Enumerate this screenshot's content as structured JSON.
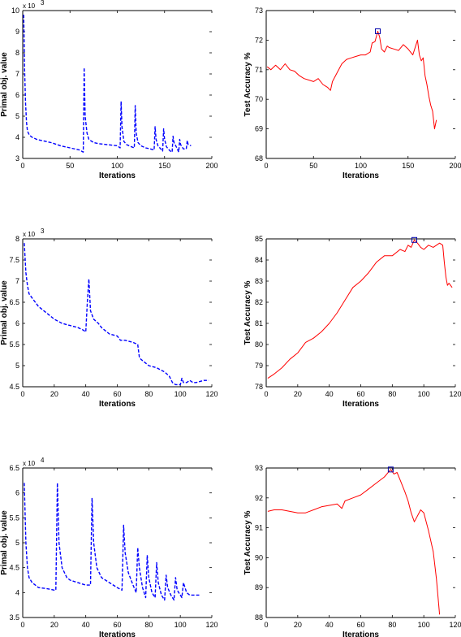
{
  "chart_data": [
    {
      "type": "line",
      "xlabel": "Iterations",
      "ylabel": "Primal obj. value",
      "y_multiplier": "x 10",
      "y_multiplier_exp": "3",
      "xlim": [
        0,
        200
      ],
      "ylim": [
        3,
        10
      ],
      "xticks": [
        0,
        50,
        100,
        150,
        200
      ],
      "yticks": [
        3,
        4,
        5,
        6,
        7,
        8,
        9,
        10
      ],
      "color": "#0000ff",
      "dashed": true,
      "series": [
        {
          "x": [
            1,
            2,
            3,
            4,
            5,
            7,
            10,
            15,
            20,
            30,
            40,
            50,
            60,
            64,
            65,
            66,
            68,
            70,
            75,
            80,
            90,
            100,
            103,
            104,
            105,
            107,
            110,
            115,
            118,
            119,
            120,
            122,
            125,
            130,
            135,
            139,
            140,
            141,
            143,
            146,
            148,
            149,
            150,
            152,
            156,
            158,
            159,
            160,
            163,
            165,
            166,
            167,
            170,
            173,
            174,
            175,
            178
          ],
          "y": [
            9.8,
            7.2,
            5.6,
            4.7,
            4.3,
            4.1,
            4.0,
            3.9,
            3.85,
            3.75,
            3.6,
            3.5,
            3.4,
            3.3,
            7.3,
            5.0,
            4.2,
            3.9,
            3.75,
            3.7,
            3.65,
            3.6,
            3.5,
            5.7,
            4.5,
            3.8,
            3.65,
            3.55,
            3.5,
            5.5,
            4.2,
            3.75,
            3.6,
            3.5,
            3.45,
            3.4,
            4.5,
            3.9,
            3.6,
            3.45,
            3.35,
            4.4,
            3.9,
            3.55,
            3.35,
            3.3,
            4.05,
            3.75,
            3.5,
            3.3,
            3.9,
            3.65,
            3.45,
            3.45,
            3.85,
            3.65,
            3.6
          ]
        }
      ]
    },
    {
      "type": "line",
      "xlabel": "Iterations",
      "ylabel": "Test Accuracy %",
      "xlim": [
        0,
        200
      ],
      "ylim": [
        68,
        73
      ],
      "xticks": [
        0,
        50,
        100,
        150,
        200
      ],
      "yticks": [
        68,
        69,
        70,
        71,
        72,
        73
      ],
      "color": "#ff0000",
      "dashed": false,
      "marker": {
        "x": 118,
        "y": 72.3
      },
      "series": [
        {
          "x": [
            1,
            5,
            10,
            15,
            20,
            25,
            30,
            35,
            40,
            45,
            50,
            55,
            60,
            65,
            68,
            70,
            75,
            80,
            85,
            90,
            95,
            100,
            105,
            110,
            112,
            115,
            118,
            120,
            122,
            125,
            128,
            130,
            135,
            140,
            145,
            150,
            155,
            158,
            160,
            162,
            164,
            166,
            168,
            170,
            172,
            174,
            176,
            178,
            180
          ],
          "y": [
            71.1,
            71.0,
            71.15,
            71.0,
            71.2,
            71.0,
            70.95,
            70.8,
            70.7,
            70.65,
            70.6,
            70.7,
            70.5,
            70.4,
            70.3,
            70.6,
            70.9,
            71.2,
            71.35,
            71.4,
            71.45,
            71.5,
            71.5,
            71.6,
            71.9,
            71.95,
            72.3,
            72.1,
            71.7,
            71.6,
            71.8,
            71.75,
            71.7,
            71.65,
            71.85,
            71.7,
            71.5,
            71.8,
            72.0,
            71.5,
            71.3,
            71.4,
            70.8,
            70.5,
            70.1,
            69.8,
            69.6,
            69.0,
            69.3
          ]
        }
      ]
    },
    {
      "type": "line",
      "xlabel": "Iterations",
      "ylabel": "Primal obj. value",
      "y_multiplier": "x 10",
      "y_multiplier_exp": "3",
      "xlim": [
        0,
        120
      ],
      "ylim": [
        4.5,
        8
      ],
      "xticks": [
        0,
        20,
        40,
        60,
        80,
        100,
        120
      ],
      "yticks": [
        4.5,
        5,
        5.5,
        6,
        6.5,
        7,
        7.5,
        8
      ],
      "color": "#0000ff",
      "dashed": true,
      "series": [
        {
          "x": [
            1,
            2,
            3,
            4,
            6,
            8,
            10,
            15,
            20,
            25,
            30,
            35,
            38,
            40,
            41,
            42,
            43,
            45,
            48,
            50,
            55,
            60,
            62,
            65,
            70,
            73,
            74,
            75,
            80,
            85,
            90,
            93,
            95,
            97,
            100,
            101,
            102,
            104,
            106,
            108,
            110,
            115,
            118
          ],
          "y": [
            7.9,
            7.2,
            6.9,
            6.7,
            6.6,
            6.5,
            6.4,
            6.25,
            6.1,
            6.0,
            5.95,
            5.9,
            5.85,
            5.8,
            6.5,
            7.05,
            6.3,
            6.1,
            6.0,
            5.9,
            5.75,
            5.7,
            5.6,
            5.6,
            5.55,
            5.5,
            5.2,
            5.15,
            5.0,
            4.95,
            4.85,
            4.75,
            4.6,
            4.55,
            4.55,
            4.7,
            4.6,
            4.6,
            4.65,
            4.6,
            4.6,
            4.65,
            4.65
          ]
        }
      ]
    },
    {
      "type": "line",
      "xlabel": "Iterations",
      "ylabel": "Test Accuracy %",
      "xlim": [
        0,
        120
      ],
      "ylim": [
        78,
        85
      ],
      "xticks": [
        0,
        20,
        40,
        60,
        80,
        100,
        120
      ],
      "yticks": [
        78,
        79,
        80,
        81,
        82,
        83,
        84,
        85
      ],
      "color": "#ff0000",
      "dashed": false,
      "marker": {
        "x": 94,
        "y": 84.95
      },
      "series": [
        {
          "x": [
            1,
            5,
            10,
            15,
            20,
            25,
            30,
            35,
            40,
            45,
            50,
            55,
            60,
            65,
            70,
            75,
            80,
            85,
            88,
            90,
            92,
            94,
            96,
            98,
            100,
            103,
            106,
            110,
            112,
            113,
            114,
            115,
            116,
            118
          ],
          "y": [
            78.4,
            78.6,
            78.9,
            79.3,
            79.6,
            80.1,
            80.3,
            80.6,
            81.0,
            81.5,
            82.1,
            82.7,
            83.0,
            83.4,
            83.9,
            84.2,
            84.2,
            84.5,
            84.4,
            84.7,
            84.6,
            84.95,
            84.8,
            84.6,
            84.5,
            84.7,
            84.6,
            84.8,
            84.7,
            83.9,
            83.2,
            82.8,
            82.9,
            82.7
          ]
        }
      ]
    },
    {
      "type": "line",
      "xlabel": "Iterations",
      "ylabel": "Primal obj. value",
      "y_multiplier": "x 10",
      "y_multiplier_exp": "4",
      "xlim": [
        0,
        120
      ],
      "ylim": [
        3.5,
        6.5
      ],
      "xticks": [
        0,
        20,
        40,
        60,
        80,
        100,
        120
      ],
      "yticks": [
        3.5,
        4,
        4.5,
        5,
        5.5,
        6,
        6.5
      ],
      "color": "#0000ff",
      "dashed": true,
      "series": [
        {
          "x": [
            1,
            2,
            3,
            4,
            6,
            8,
            10,
            15,
            20,
            21,
            22,
            23,
            25,
            28,
            30,
            35,
            40,
            43,
            44,
            45,
            47,
            50,
            55,
            60,
            63,
            64,
            65,
            67,
            70,
            72,
            73,
            74,
            76,
            78,
            79,
            80,
            82,
            84,
            85,
            86,
            88,
            90,
            91,
            92,
            94,
            96,
            97,
            98,
            100,
            101,
            102,
            104,
            106,
            108,
            112
          ],
          "y": [
            6.2,
            5.0,
            4.5,
            4.3,
            4.2,
            4.15,
            4.1,
            4.08,
            4.05,
            4.05,
            6.2,
            5.0,
            4.5,
            4.3,
            4.25,
            4.2,
            4.15,
            4.15,
            5.9,
            5.0,
            4.5,
            4.3,
            4.2,
            4.1,
            4.05,
            5.35,
            4.8,
            4.4,
            4.15,
            4.0,
            4.9,
            4.5,
            4.1,
            3.9,
            4.75,
            4.3,
            4.0,
            3.9,
            4.6,
            4.2,
            3.95,
            3.85,
            4.35,
            4.1,
            3.95,
            3.85,
            4.3,
            4.05,
            3.95,
            3.9,
            4.2,
            4.0,
            3.95,
            3.95,
            3.95
          ]
        }
      ]
    },
    {
      "type": "line",
      "xlabel": "Iterations",
      "ylabel": "Test Accuracy %",
      "xlim": [
        0,
        120
      ],
      "ylim": [
        88,
        93
      ],
      "xticks": [
        0,
        20,
        40,
        60,
        80,
        100,
        120
      ],
      "yticks": [
        88,
        89,
        90,
        91,
        92,
        93
      ],
      "color": "#ff0000",
      "dashed": false,
      "marker": {
        "x": 79,
        "y": 92.95
      },
      "series": [
        {
          "x": [
            1,
            5,
            10,
            15,
            20,
            25,
            30,
            35,
            40,
            45,
            48,
            50,
            55,
            60,
            65,
            70,
            75,
            79,
            81,
            83,
            85,
            88,
            90,
            92,
            94,
            96,
            98,
            100,
            103,
            106,
            108,
            110
          ],
          "y": [
            91.55,
            91.6,
            91.6,
            91.55,
            91.5,
            91.5,
            91.6,
            91.7,
            91.75,
            91.8,
            91.65,
            91.9,
            92.0,
            92.1,
            92.3,
            92.5,
            92.7,
            92.95,
            92.8,
            92.85,
            92.6,
            92.2,
            91.9,
            91.5,
            91.2,
            91.4,
            91.6,
            91.5,
            90.9,
            90.2,
            89.3,
            88.1
          ]
        }
      ]
    }
  ]
}
